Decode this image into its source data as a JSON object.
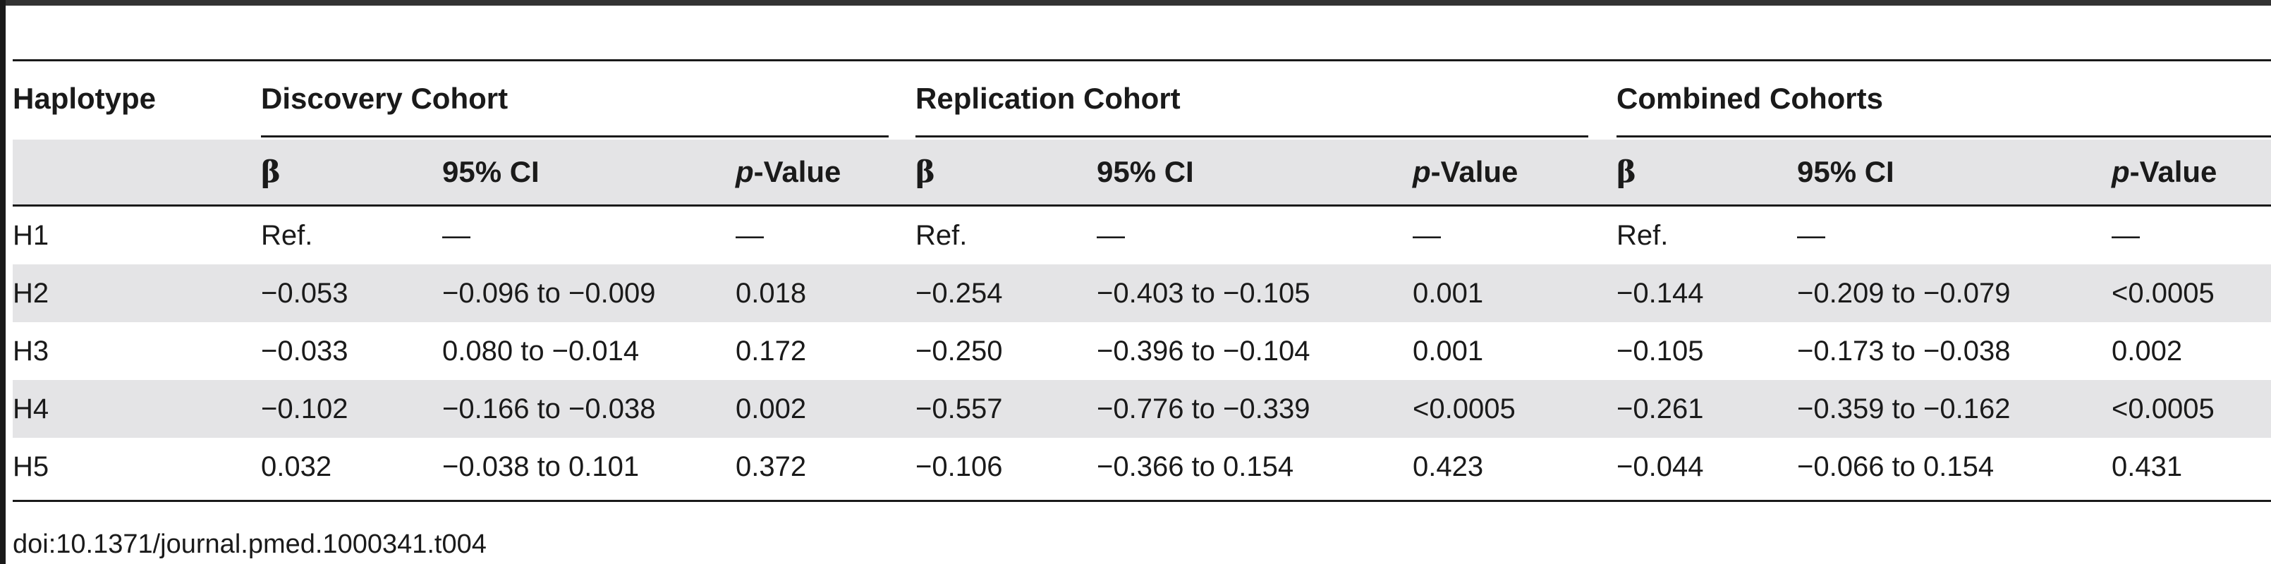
{
  "table": {
    "col_haplotype": "Haplotype",
    "groups": [
      {
        "label": "Discovery Cohort"
      },
      {
        "label": "Replication Cohort"
      },
      {
        "label": "Combined Cohorts"
      }
    ],
    "sub_headers": {
      "beta": "β",
      "ci": "95% CI",
      "p_prefix": "p",
      "p_suffix": "-Value"
    },
    "rows": [
      {
        "haplotype": "H1",
        "cells": [
          "Ref.",
          "—",
          "—",
          "Ref.",
          "—",
          "—",
          "Ref.",
          "—",
          "—"
        ]
      },
      {
        "haplotype": "H2",
        "cells": [
          "−0.053",
          "−0.096 to −0.009",
          "0.018",
          "−0.254",
          "−0.403 to −0.105",
          "0.001",
          "−0.144",
          "−0.209 to −0.079",
          "<0.0005"
        ]
      },
      {
        "haplotype": "H3",
        "cells": [
          "−0.033",
          "0.080 to −0.014",
          "0.172",
          "−0.250",
          "−0.396 to −0.104",
          "0.001",
          "−0.105",
          "−0.173 to −0.038",
          "0.002"
        ]
      },
      {
        "haplotype": "H4",
        "cells": [
          "−0.102",
          "−0.166 to −0.038",
          "0.002",
          "−0.557",
          "−0.776 to −0.339",
          "<0.0005",
          "−0.261",
          "−0.359 to −0.162",
          "<0.0005"
        ]
      },
      {
        "haplotype": "H5",
        "cells": [
          "0.032",
          "−0.038 to 0.101",
          "0.372",
          "−0.106",
          "−0.366 to 0.154",
          "0.423",
          "−0.044",
          "−0.066 to 0.154",
          "0.431"
        ]
      }
    ],
    "footnote": "doi:10.1371/journal.pmed.1000341.t004"
  }
}
